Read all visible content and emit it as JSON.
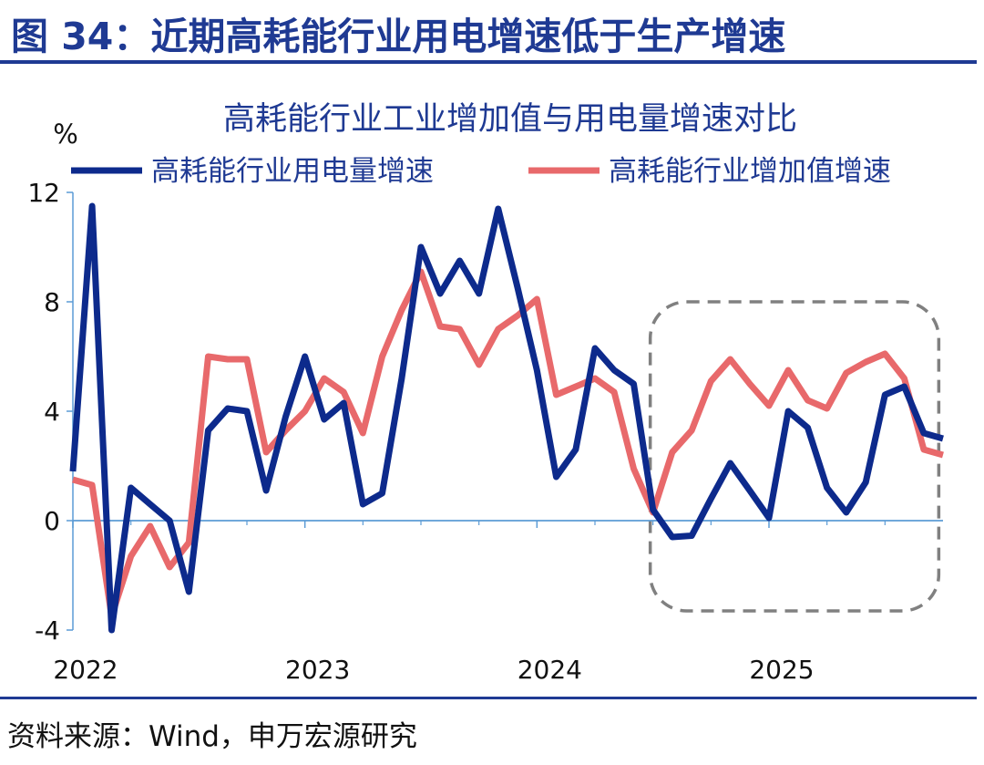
{
  "figure": {
    "header": "图 34：近期高耗能行业用电增速低于生产增速",
    "source": "资料来源：Wind，申万宏源研究"
  },
  "colors": {
    "brand": "#1f3a93",
    "series_electricity": "#0d2a8c",
    "series_value_added": "#e8696b",
    "axis": "#5b9bd5",
    "highlight_box": "#808080"
  },
  "chart_data": {
    "type": "line",
    "title": "高耗能行业工业增加值与用电量增速对比",
    "ylabel": "%",
    "ylim": [
      -4,
      12
    ],
    "yticks": [
      -4,
      0,
      4,
      8,
      12
    ],
    "xlim": [
      2022.0,
      2025.75
    ],
    "xticks": [
      {
        "value": 2022.0,
        "label": "2022"
      },
      {
        "value": 2023.0,
        "label": "2023"
      },
      {
        "value": 2024.0,
        "label": "2024"
      },
      {
        "value": 2025.0,
        "label": "2025"
      }
    ],
    "legend": "top",
    "grid": false,
    "highlight": {
      "x_start": 2024.5,
      "x_end": 2025.72,
      "y_low": -3.3,
      "y_high": 8.0,
      "style": "dashed"
    },
    "series": [
      {
        "name": "高耗能行业用电量增速",
        "points": [
          [
            2022.0,
            1.8
          ],
          [
            2022.083,
            11.5
          ],
          [
            2022.167,
            -4.0
          ],
          [
            2022.25,
            1.2
          ],
          [
            2022.333,
            0.6
          ],
          [
            2022.417,
            0.0
          ],
          [
            2022.5,
            -2.6
          ],
          [
            2022.583,
            3.3
          ],
          [
            2022.667,
            4.1
          ],
          [
            2022.75,
            4.0
          ],
          [
            2022.833,
            1.1
          ],
          [
            2022.917,
            3.8
          ],
          [
            2023.0,
            6.0
          ],
          [
            2023.083,
            3.7
          ],
          [
            2023.167,
            4.3
          ],
          [
            2023.25,
            0.6
          ],
          [
            2023.333,
            1.0
          ],
          [
            2023.417,
            5.2
          ],
          [
            2023.5,
            10.0
          ],
          [
            2023.583,
            8.3
          ],
          [
            2023.667,
            9.5
          ],
          [
            2023.75,
            8.3
          ],
          [
            2023.833,
            11.4
          ],
          [
            2023.917,
            8.5
          ],
          [
            2024.0,
            5.5
          ],
          [
            2024.083,
            1.6
          ],
          [
            2024.167,
            2.6
          ],
          [
            2024.25,
            6.3
          ],
          [
            2024.333,
            5.5
          ],
          [
            2024.417,
            5.0
          ],
          [
            2024.5,
            0.4
          ],
          [
            2024.583,
            -0.6
          ],
          [
            2024.667,
            -0.55
          ],
          [
            2024.75,
            0.8
          ],
          [
            2024.833,
            2.1
          ],
          [
            2024.917,
            1.1
          ],
          [
            2025.0,
            0.1
          ],
          [
            2025.083,
            4.0
          ],
          [
            2025.167,
            3.4
          ],
          [
            2025.25,
            1.2
          ],
          [
            2025.333,
            0.3
          ],
          [
            2025.417,
            1.4
          ],
          [
            2025.5,
            4.6
          ],
          [
            2025.583,
            4.9
          ],
          [
            2025.667,
            3.2
          ],
          [
            2025.75,
            3.0
          ]
        ]
      },
      {
        "name": "高耗能行业增加值增速",
        "points": [
          [
            2022.0,
            1.5
          ],
          [
            2022.083,
            1.3
          ],
          [
            2022.167,
            -3.5
          ],
          [
            2022.25,
            -1.3
          ],
          [
            2022.333,
            -0.2
          ],
          [
            2022.417,
            -1.7
          ],
          [
            2022.5,
            -0.8
          ],
          [
            2022.583,
            6.0
          ],
          [
            2022.667,
            5.9
          ],
          [
            2022.75,
            5.9
          ],
          [
            2022.833,
            2.5
          ],
          [
            2022.917,
            3.3
          ],
          [
            2023.0,
            4.0
          ],
          [
            2023.083,
            5.2
          ],
          [
            2023.167,
            4.7
          ],
          [
            2023.25,
            3.2
          ],
          [
            2023.333,
            6.0
          ],
          [
            2023.417,
            7.7
          ],
          [
            2023.5,
            9.1
          ],
          [
            2023.583,
            7.1
          ],
          [
            2023.667,
            7.0
          ],
          [
            2023.75,
            5.7
          ],
          [
            2023.833,
            7.0
          ],
          [
            2023.917,
            7.5
          ],
          [
            2024.0,
            8.1
          ],
          [
            2024.083,
            4.6
          ],
          [
            2024.167,
            4.9
          ],
          [
            2024.25,
            5.2
          ],
          [
            2024.333,
            4.7
          ],
          [
            2024.417,
            1.9
          ],
          [
            2024.5,
            0.3
          ],
          [
            2024.583,
            2.5
          ],
          [
            2024.667,
            3.3
          ],
          [
            2024.75,
            5.1
          ],
          [
            2024.833,
            5.9
          ],
          [
            2024.917,
            5.0
          ],
          [
            2025.0,
            4.2
          ],
          [
            2025.083,
            5.5
          ],
          [
            2025.167,
            4.4
          ],
          [
            2025.25,
            4.1
          ],
          [
            2025.333,
            5.4
          ],
          [
            2025.417,
            5.8
          ],
          [
            2025.5,
            6.1
          ],
          [
            2025.583,
            5.2
          ],
          [
            2025.667,
            2.6
          ],
          [
            2025.75,
            2.4
          ]
        ]
      }
    ]
  }
}
